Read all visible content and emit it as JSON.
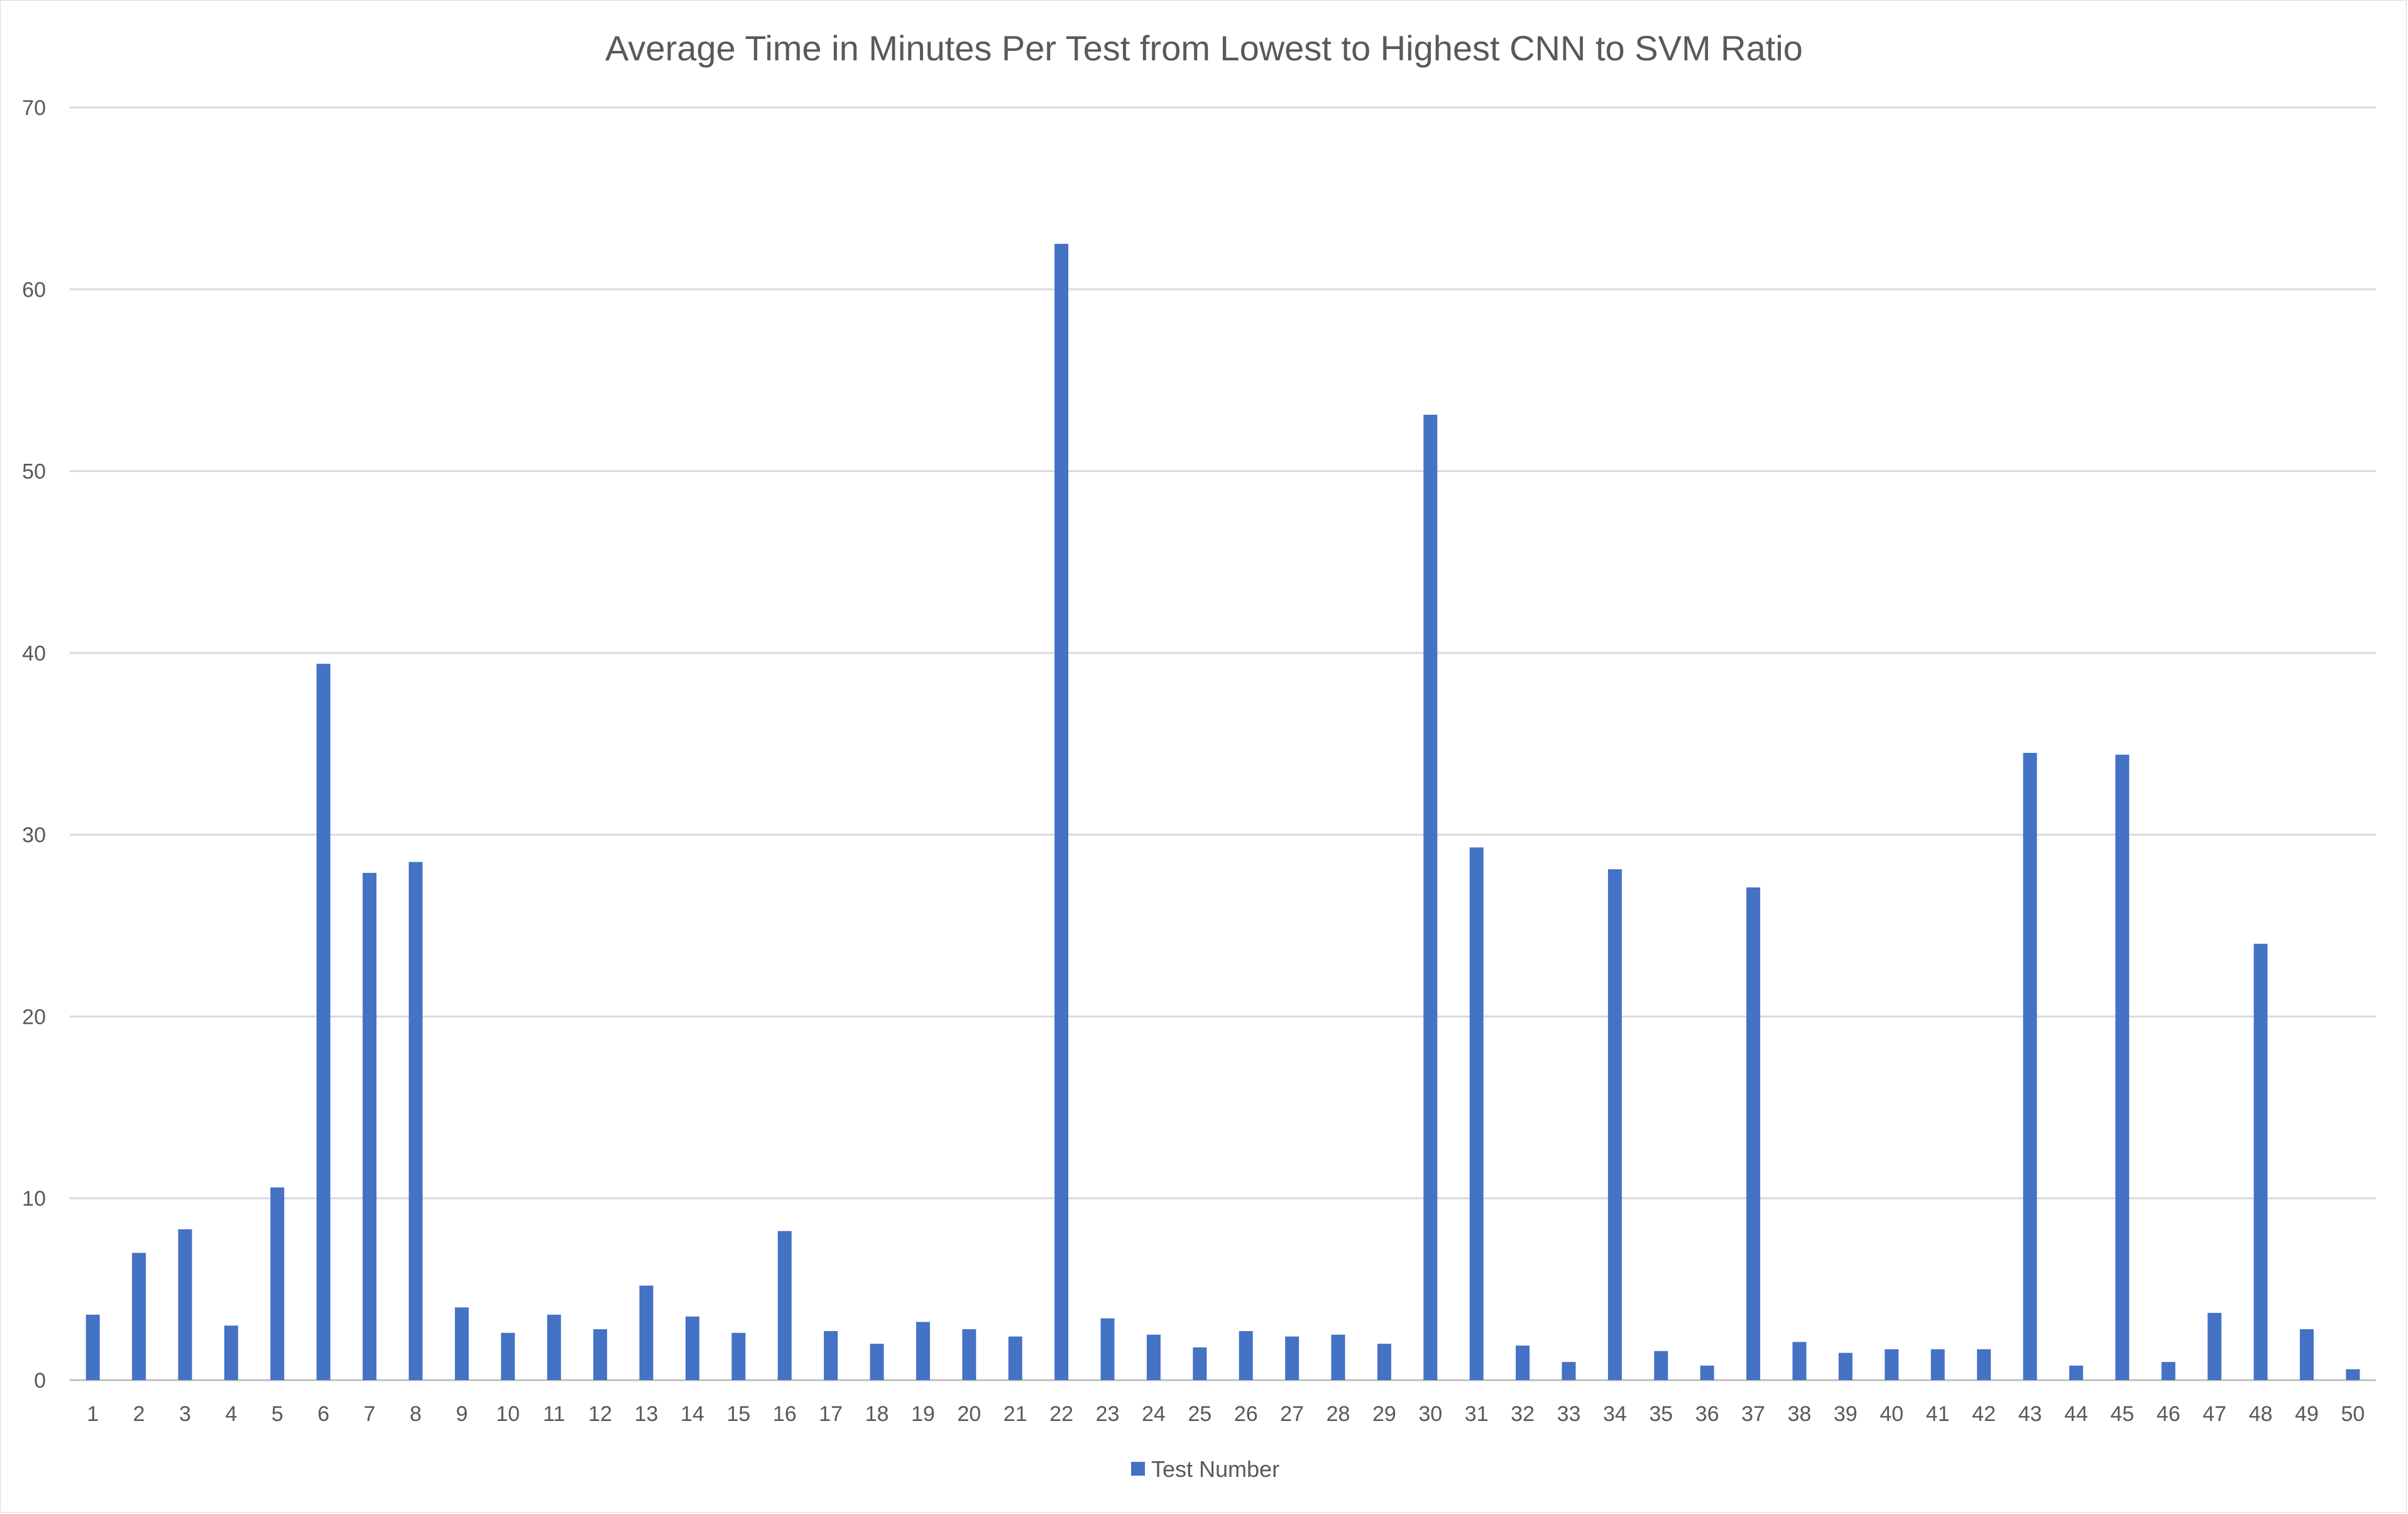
{
  "chart_data": {
    "type": "bar",
    "title": "Average Time in Minutes Per Test from Lowest to Highest CNN to SVM Ratio",
    "xlabel": "",
    "ylabel": "",
    "ylim": [
      0,
      70
    ],
    "yticks": [
      0,
      10,
      20,
      30,
      40,
      50,
      60,
      70
    ],
    "grid": true,
    "legend": "bottom",
    "color": "#4472C4",
    "categories": [
      "1",
      "2",
      "3",
      "4",
      "5",
      "6",
      "7",
      "8",
      "9",
      "10",
      "11",
      "12",
      "13",
      "14",
      "15",
      "16",
      "17",
      "18",
      "19",
      "20",
      "21",
      "22",
      "23",
      "24",
      "25",
      "26",
      "27",
      "28",
      "29",
      "30",
      "31",
      "32",
      "33",
      "34",
      "35",
      "36",
      "37",
      "38",
      "39",
      "40",
      "41",
      "42",
      "43",
      "44",
      "45",
      "46",
      "47",
      "48",
      "49",
      "50"
    ],
    "series": [
      {
        "name": "Test Number",
        "values": [
          3.6,
          7.0,
          8.3,
          3.0,
          10.6,
          39.4,
          27.9,
          28.5,
          4.0,
          2.6,
          3.6,
          2.8,
          5.2,
          3.5,
          2.6,
          8.2,
          2.7,
          2.0,
          3.2,
          2.8,
          2.4,
          62.5,
          3.4,
          2.5,
          1.8,
          2.7,
          2.4,
          2.5,
          2.0,
          53.1,
          29.3,
          1.9,
          1.0,
          28.1,
          1.6,
          0.8,
          27.1,
          2.1,
          1.5,
          1.7,
          1.7,
          1.7,
          34.5,
          0.8,
          34.4,
          1.0,
          3.7,
          24.0,
          2.8,
          0.6
        ]
      }
    ]
  }
}
